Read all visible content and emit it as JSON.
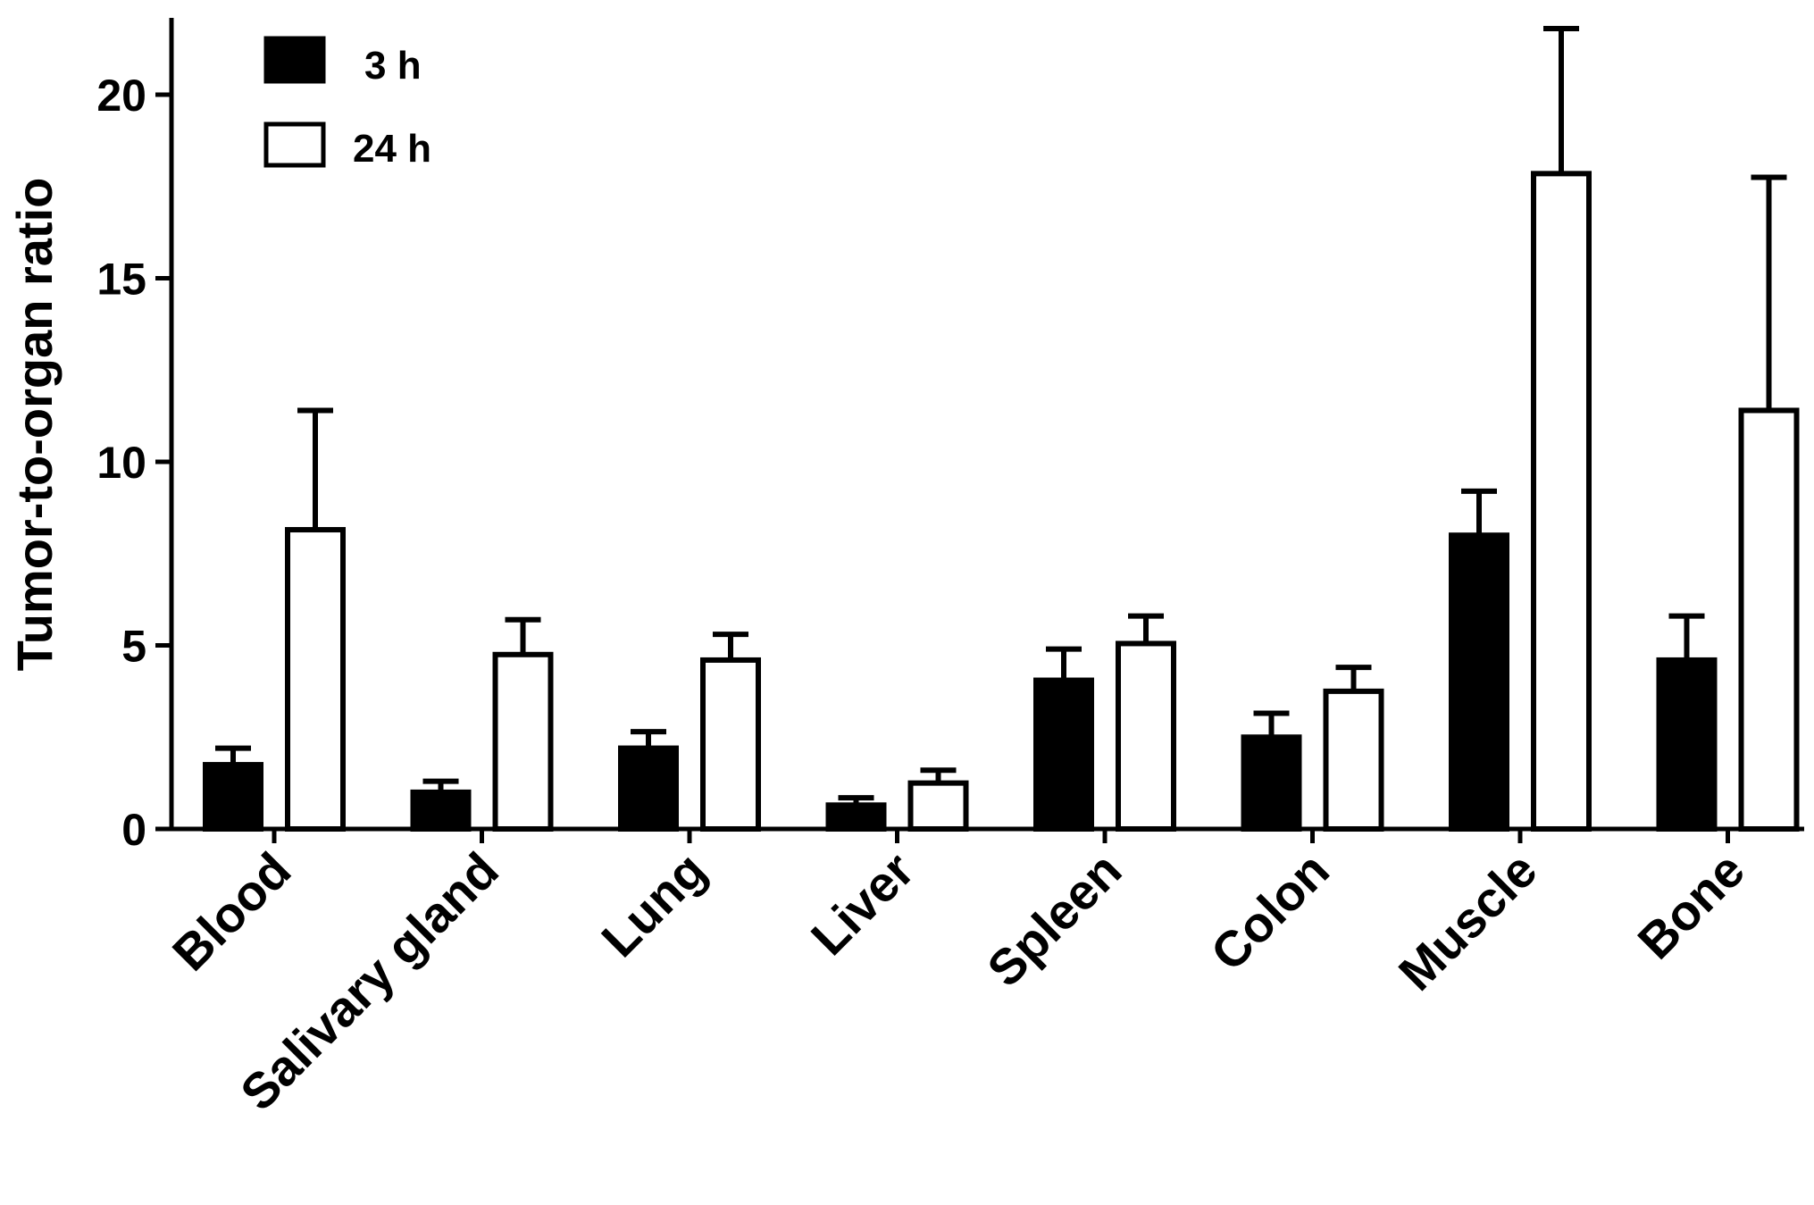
{
  "chart_data": {
    "type": "bar",
    "ylabel": "Tumor-to-organ ratio",
    "xlabel": "",
    "title": "",
    "ylim": [
      0,
      22
    ],
    "yticks": [
      0,
      5,
      10,
      15,
      20
    ],
    "categories": [
      "Blood",
      "Salivary gland",
      "Lung",
      "Liver",
      "Spleen",
      "Colon",
      "Muscle",
      "Bone"
    ],
    "series": [
      {
        "name": "3 h",
        "fill": "#000000",
        "values": [
          1.75,
          1.0,
          2.2,
          0.65,
          4.05,
          2.5,
          8.0,
          4.6
        ],
        "errors": [
          0.45,
          0.3,
          0.45,
          0.2,
          0.85,
          0.65,
          1.2,
          1.2
        ]
      },
      {
        "name": "24 h",
        "fill": "#ffffff",
        "values": [
          8.15,
          4.75,
          4.6,
          1.25,
          5.05,
          3.75,
          17.85,
          11.4
        ],
        "errors": [
          3.25,
          0.95,
          0.7,
          0.35,
          0.75,
          0.65,
          3.95,
          6.35
        ]
      }
    ],
    "legend": "top-left",
    "grid": false
  }
}
